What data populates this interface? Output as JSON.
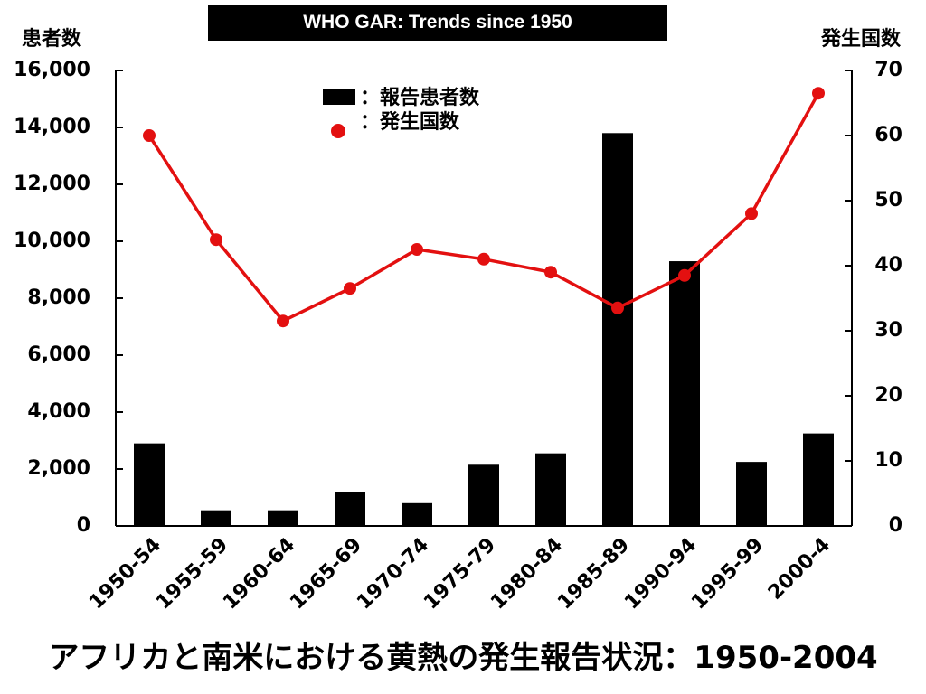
{
  "banner_title": "WHO GAR: Trends since 1950",
  "footer_caption": "アフリカと南米における黄熱の発生報告状況：1950-2004",
  "colors": {
    "bars": "#000000",
    "line": "#e31010",
    "markers": "#e31010",
    "axes": "#000000"
  },
  "chart_data": {
    "type": "bar",
    "categories": [
      "1950-54",
      "1955-59",
      "1960-64",
      "1965-69",
      "1970-74",
      "1975-79",
      "1980-84",
      "1985-89",
      "1990-94",
      "1995-99",
      "2000-4"
    ],
    "series": [
      {
        "name": "：報告患者数",
        "type": "bar",
        "axis": "left",
        "values": [
          2900,
          550,
          550,
          1200,
          800,
          2150,
          2550,
          13800,
          9300,
          2250,
          3250
        ]
      },
      {
        "name": "：発生国数",
        "type": "line",
        "axis": "right",
        "values": [
          60,
          44,
          31.5,
          36.5,
          42.5,
          41,
          39,
          33.5,
          38.5,
          48,
          66.5
        ]
      }
    ],
    "ylabel_left": "患者数",
    "ylabel_right": "発生国数",
    "ylim_left": [
      0,
      16000
    ],
    "ylim_right": [
      0,
      70
    ],
    "yticks_left": [
      "0",
      "2,000",
      "4,000",
      "6,000",
      "8,000",
      "10,000",
      "12,000",
      "14,000",
      "16,000"
    ],
    "yticks_right": [
      "0",
      "10",
      "20",
      "30",
      "40",
      "50",
      "60",
      "70"
    ],
    "legend_position": "top-center",
    "grid": false
  }
}
